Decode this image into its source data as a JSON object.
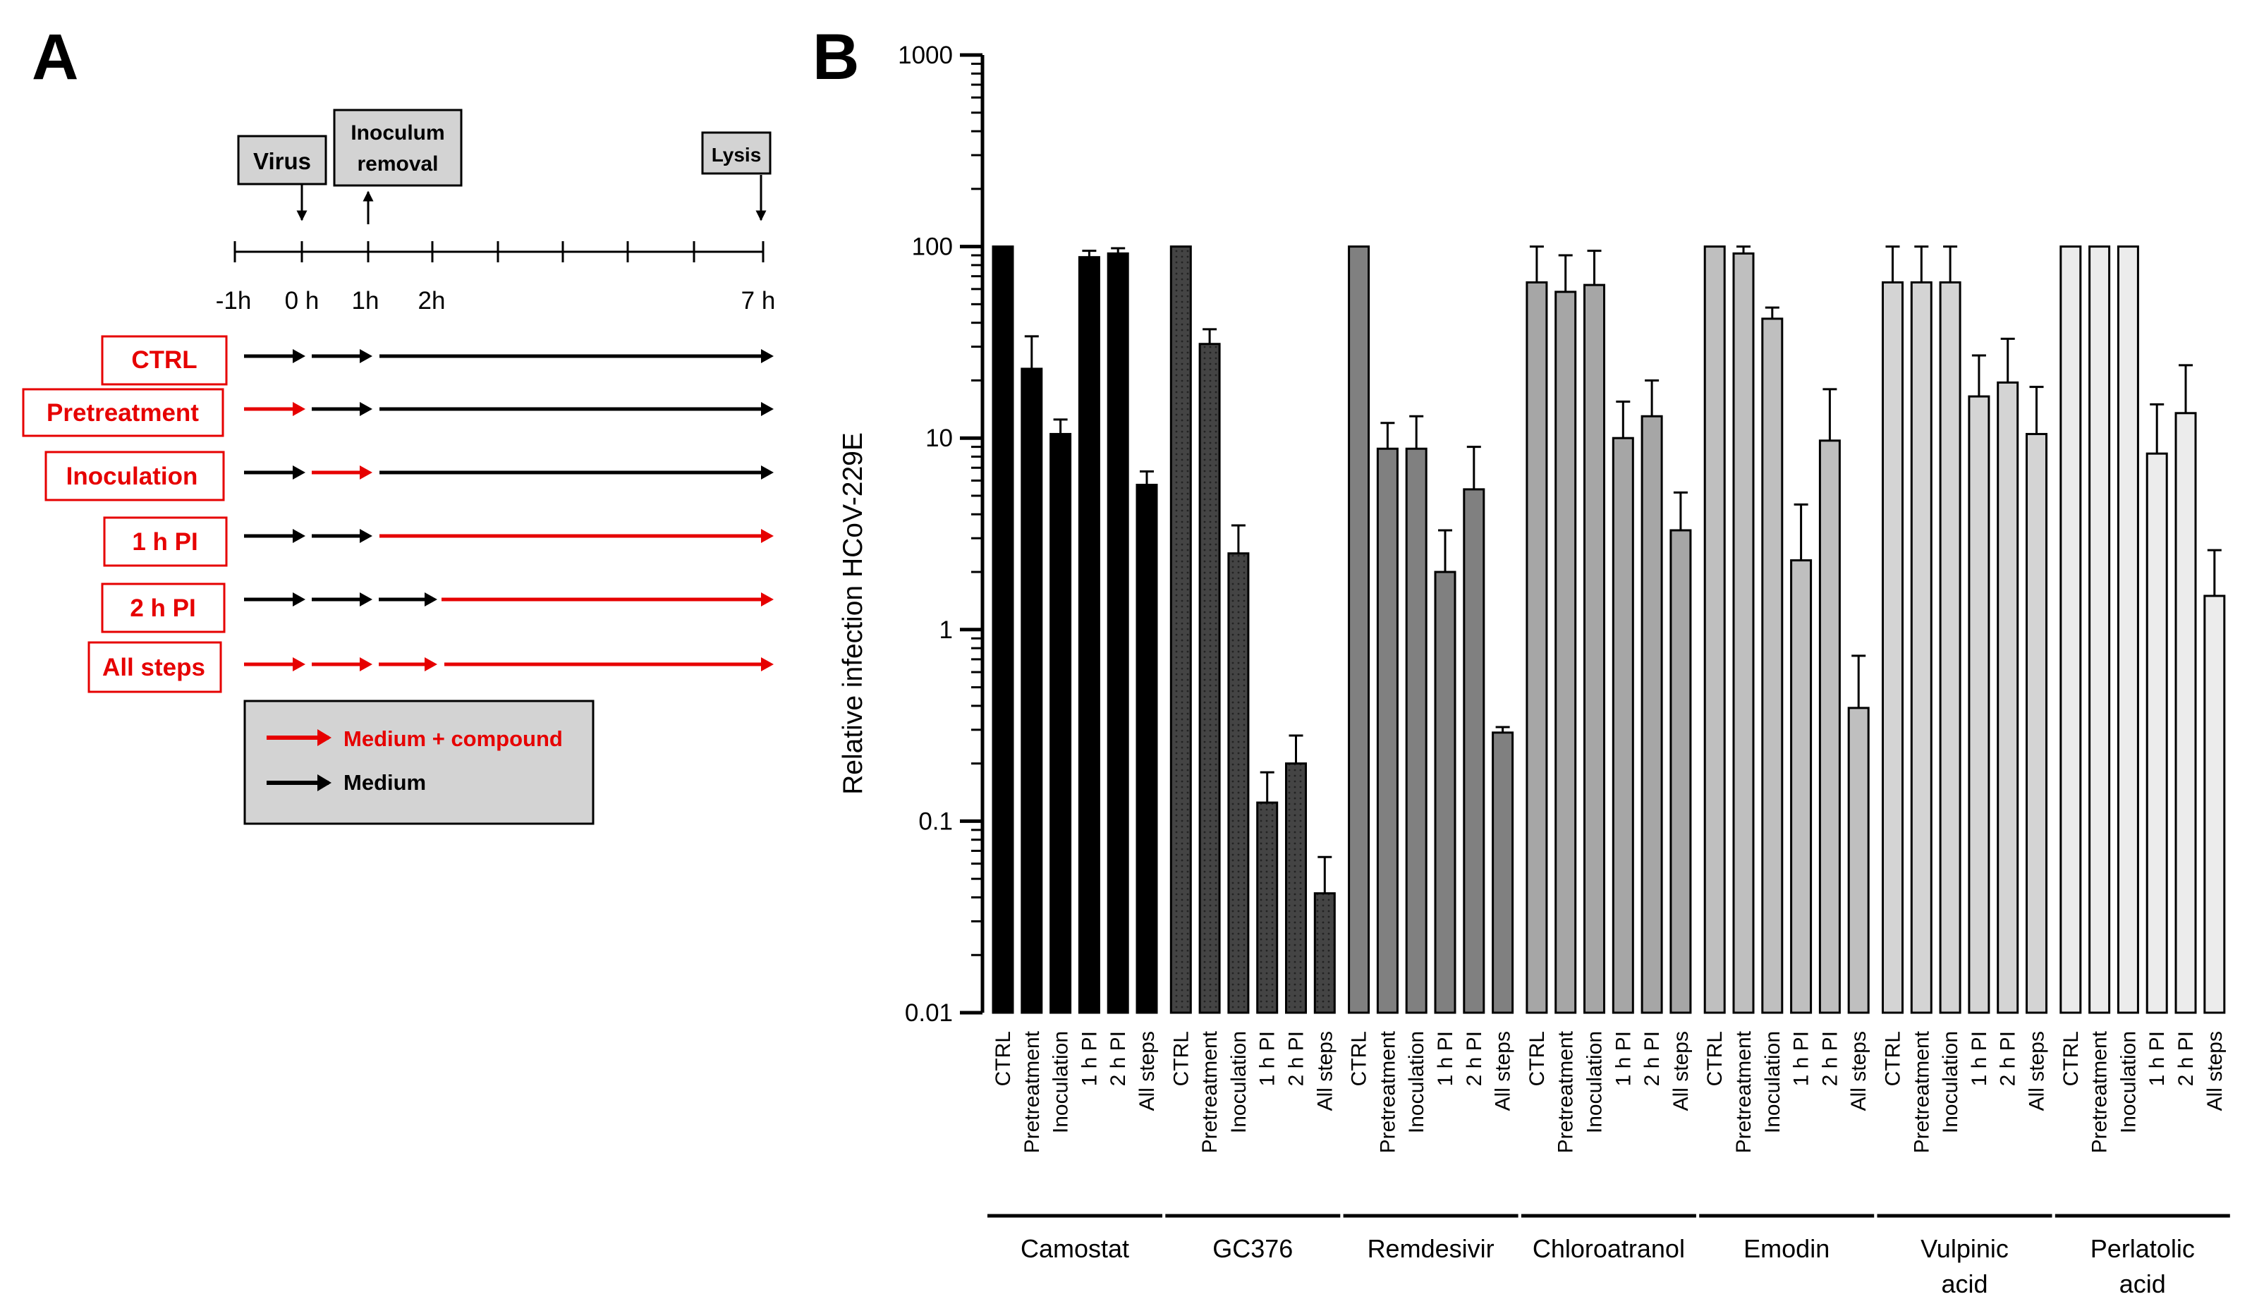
{
  "panelA": {
    "letter": "A",
    "events": {
      "virus": "Virus",
      "inoculum_line1": "Inoculum",
      "inoculum_line2": "removal",
      "lysis": "Lysis"
    },
    "timeline_labels": [
      "-1h",
      "0 h",
      "1h",
      "2h",
      "7 h"
    ],
    "conditions": [
      "CTRL",
      "Pretreatment",
      "Inoculation",
      "1 h PI",
      "2 h PI",
      "All steps"
    ],
    "legend": {
      "compound": "Medium + compound",
      "medium": "Medium"
    },
    "colors": {
      "compound": "#e60000",
      "medium": "#000000",
      "box": "#d3d3d3"
    }
  },
  "chart_data": {
    "type": "bar",
    "panel_letter": "B",
    "ylabel": "Relative infection HCoV-229E",
    "yscale": "log",
    "ylim": [
      0.01,
      1000
    ],
    "yticks": [
      "0.01",
      "0.1",
      "1",
      "10",
      "100",
      "1000"
    ],
    "categories": [
      "CTRL",
      "Pretreatment",
      "Inoculation",
      "1 h PI",
      "2 h PI",
      "All steps"
    ],
    "groups": [
      {
        "name": "Camostat",
        "label_lines": [
          "Camostat"
        ],
        "fill": "#000000",
        "pattern": "solid",
        "values": [
          100,
          23,
          10.5,
          88,
          92,
          5.7
        ],
        "errors": [
          0,
          34,
          12.5,
          95,
          98,
          6.7
        ]
      },
      {
        "name": "GC376",
        "label_lines": [
          "GC376"
        ],
        "fill": "#444444",
        "pattern": "dotted",
        "values": [
          100,
          31,
          2.5,
          0.125,
          0.2,
          0.042
        ],
        "errors": [
          0,
          37,
          3.5,
          0.18,
          0.28,
          0.065
        ]
      },
      {
        "name": "Remdesivir",
        "label_lines": [
          "Remdesivir"
        ],
        "fill": "#808080",
        "pattern": "solid",
        "values": [
          100,
          8.8,
          8.8,
          2.0,
          5.4,
          0.29
        ],
        "errors": [
          0,
          12,
          13,
          3.3,
          9.0,
          0.31
        ]
      },
      {
        "name": "Chloroatranol",
        "label_lines": [
          "Chloroatranol"
        ],
        "fill": "#a6a6a6",
        "pattern": "solid",
        "values": [
          65,
          58,
          63,
          10,
          13,
          3.3
        ],
        "errors": [
          100,
          90,
          95,
          15.5,
          20,
          5.2
        ]
      },
      {
        "name": "Emodin",
        "label_lines": [
          "Emodin"
        ],
        "fill": "#bfbfbf",
        "pattern": "solid",
        "values": [
          100,
          92,
          42,
          2.3,
          9.7,
          0.39
        ],
        "errors": [
          0,
          100,
          48,
          4.5,
          18,
          0.73
        ]
      },
      {
        "name": "Vulpinic acid",
        "label_lines": [
          "Vulpinic",
          "acid"
        ],
        "fill": "#d4d4d4",
        "pattern": "solid",
        "values": [
          65,
          65,
          65,
          16.5,
          19.5,
          10.5
        ],
        "errors": [
          100,
          100,
          100,
          27,
          33,
          18.5
        ]
      },
      {
        "name": "Perlatolic acid",
        "label_lines": [
          "Perlatolic",
          "acid"
        ],
        "fill": "#ececec",
        "pattern": "solid",
        "values": [
          100,
          100,
          100,
          8.3,
          13.5,
          1.5
        ],
        "errors": [
          0,
          0,
          0,
          15,
          24,
          2.6
        ]
      }
    ]
  }
}
